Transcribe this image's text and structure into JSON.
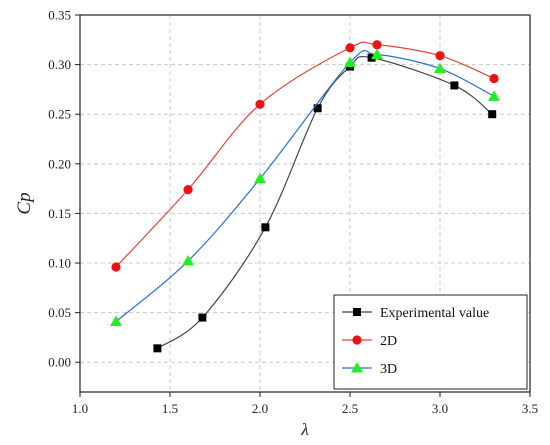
{
  "chart_data": {
    "type": "line",
    "xlabel": "λ",
    "ylabel": "Cp",
    "xlim": [
      1.0,
      3.5
    ],
    "ylim": [
      -0.03,
      0.35
    ],
    "xticks": [
      1.0,
      1.5,
      2.0,
      2.5,
      3.0,
      3.5
    ],
    "xtick_labels": [
      "1.0",
      "1.5",
      "2.0",
      "2.5",
      "3.0",
      "3.5"
    ],
    "yticks": [
      0.0,
      0.05,
      0.1,
      0.15,
      0.2,
      0.25,
      0.3,
      0.35
    ],
    "ytick_labels": [
      "0.00",
      "0.05",
      "0.10",
      "0.15",
      "0.20",
      "0.25",
      "0.30",
      "0.35"
    ],
    "grid": true,
    "legend_position": "bottom-right",
    "series": [
      {
        "name": "Experimental value",
        "color": "#444444",
        "marker": "square",
        "marker_color": "#000000",
        "x": [
          1.43,
          1.68,
          2.03,
          2.32,
          2.5,
          2.62,
          3.08,
          3.29
        ],
        "y": [
          0.014,
          0.045,
          0.136,
          0.256,
          0.298,
          0.307,
          0.279,
          0.25
        ]
      },
      {
        "name": "2D",
        "color": "#e8413a",
        "marker": "circle",
        "marker_color": "#ee1111",
        "x": [
          1.2,
          1.6,
          2.0,
          2.5,
          2.65,
          3.0,
          3.3
        ],
        "y": [
          0.096,
          0.174,
          0.26,
          0.317,
          0.32,
          0.309,
          0.286
        ]
      },
      {
        "name": "3D",
        "color": "#2a6fd6",
        "marker": "triangle",
        "marker_color": "#22ee22",
        "x": [
          1.2,
          1.6,
          2.0,
          2.5,
          2.65,
          3.0,
          3.3
        ],
        "y": [
          0.041,
          0.102,
          0.185,
          0.302,
          0.31,
          0.296,
          0.268
        ]
      }
    ]
  }
}
